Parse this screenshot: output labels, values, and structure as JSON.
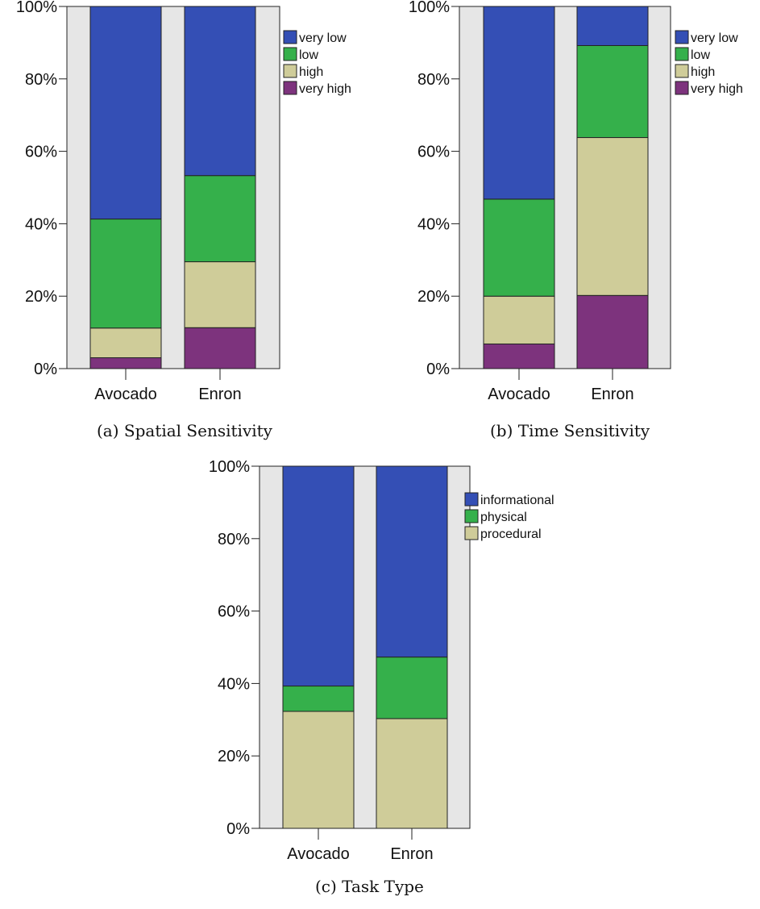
{
  "colors": {
    "very_low": "#344fb5",
    "low": "#35b04b",
    "high": "#cfcc99",
    "very_high": "#7d337d",
    "informational": "#344fb5",
    "physical": "#35b04b",
    "procedural": "#cfcc99",
    "plot_background": "#e6e6e6"
  },
  "chart_data": [
    {
      "type": "bar",
      "stacked": true,
      "caption": "(a) Spatial Sensitivity",
      "categories": [
        "Avocado",
        "Enron"
      ],
      "ylim": [
        0,
        100
      ],
      "yticks": [
        "0%",
        "20%",
        "40%",
        "60%",
        "80%",
        "100%"
      ],
      "legend_position": "right",
      "series": [
        {
          "name": "very high",
          "color_key": "very_high",
          "values": [
            3,
            11.3
          ]
        },
        {
          "name": "high",
          "color_key": "high",
          "values": [
            8.2,
            18.2
          ]
        },
        {
          "name": "low",
          "color_key": "low",
          "values": [
            30.1,
            23.8
          ]
        },
        {
          "name": "very low",
          "color_key": "very_low",
          "values": [
            58.7,
            46.7
          ]
        }
      ],
      "legend_order": [
        "very low",
        "low",
        "high",
        "very high"
      ]
    },
    {
      "type": "bar",
      "stacked": true,
      "caption": "(b) Time Sensitivity",
      "categories": [
        "Avocado",
        "Enron"
      ],
      "ylim": [
        0,
        100
      ],
      "yticks": [
        "0%",
        "20%",
        "40%",
        "60%",
        "80%",
        "100%"
      ],
      "legend_position": "right",
      "series": [
        {
          "name": "very high",
          "color_key": "very_high",
          "values": [
            6.8,
            20.2
          ]
        },
        {
          "name": "high",
          "color_key": "high",
          "values": [
            13.2,
            43.6
          ]
        },
        {
          "name": "low",
          "color_key": "low",
          "values": [
            26.8,
            25.4
          ]
        },
        {
          "name": "very low",
          "color_key": "very_low",
          "values": [
            53.2,
            10.8
          ]
        }
      ],
      "legend_order": [
        "very low",
        "low",
        "high",
        "very high"
      ]
    },
    {
      "type": "bar",
      "stacked": true,
      "caption": "(c) Task Type",
      "categories": [
        "Avocado",
        "Enron"
      ],
      "ylim": [
        0,
        100
      ],
      "yticks": [
        "0%",
        "20%",
        "40%",
        "60%",
        "80%",
        "100%"
      ],
      "legend_position": "right",
      "series": [
        {
          "name": "procedural",
          "color_key": "procedural",
          "values": [
            32.3,
            30.3
          ]
        },
        {
          "name": "physical",
          "color_key": "physical",
          "values": [
            7,
            17
          ]
        },
        {
          "name": "informational",
          "color_key": "informational",
          "values": [
            60.7,
            52.7
          ]
        }
      ],
      "legend_order": [
        "informational",
        "physical",
        "procedural"
      ]
    }
  ]
}
